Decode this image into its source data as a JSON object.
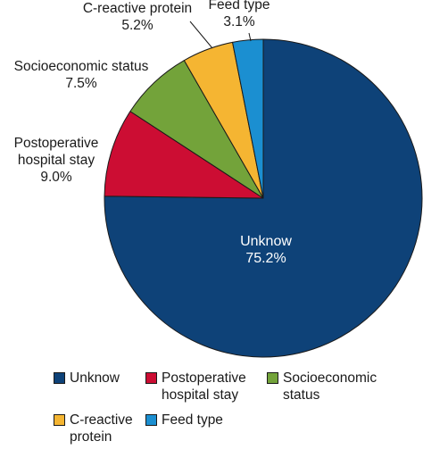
{
  "chart_data": {
    "type": "pie",
    "title": "",
    "slices": [
      {
        "label": "Unknow",
        "value": 75.2,
        "value_label": "75.2%",
        "color": "#0e4278",
        "label_lines": [
          "Unknow"
        ],
        "legend_lines": [
          "Unknow"
        ]
      },
      {
        "label": "Postoperative hospital stay",
        "value": 9.0,
        "value_label": "9.0%",
        "color": "#cc0d33",
        "label_lines": [
          "Postoperative",
          "hospital stay"
        ],
        "legend_lines": [
          "Postoperative",
          "hospital stay"
        ]
      },
      {
        "label": "Socioeconomic status",
        "value": 7.5,
        "value_label": "7.5%",
        "color": "#73a33a",
        "label_lines": [
          "Socioeconomic status"
        ],
        "legend_lines": [
          "Socioeconomic",
          "status"
        ]
      },
      {
        "label": "C-reactive protein",
        "value": 5.2,
        "value_label": "5.2%",
        "color": "#f5b532",
        "label_lines": [
          "C-reactive protein"
        ],
        "legend_lines": [
          "C-reactive",
          "protein"
        ]
      },
      {
        "label": "Feed type",
        "value": 3.1,
        "value_label": "3.1%",
        "color": "#1b8fd1",
        "label_lines": [
          "Feed type"
        ],
        "legend_lines": [
          "Feed type"
        ]
      }
    ],
    "start_angle": "12 o'clock",
    "direction": "clockwise",
    "legend_position": "bottom"
  }
}
